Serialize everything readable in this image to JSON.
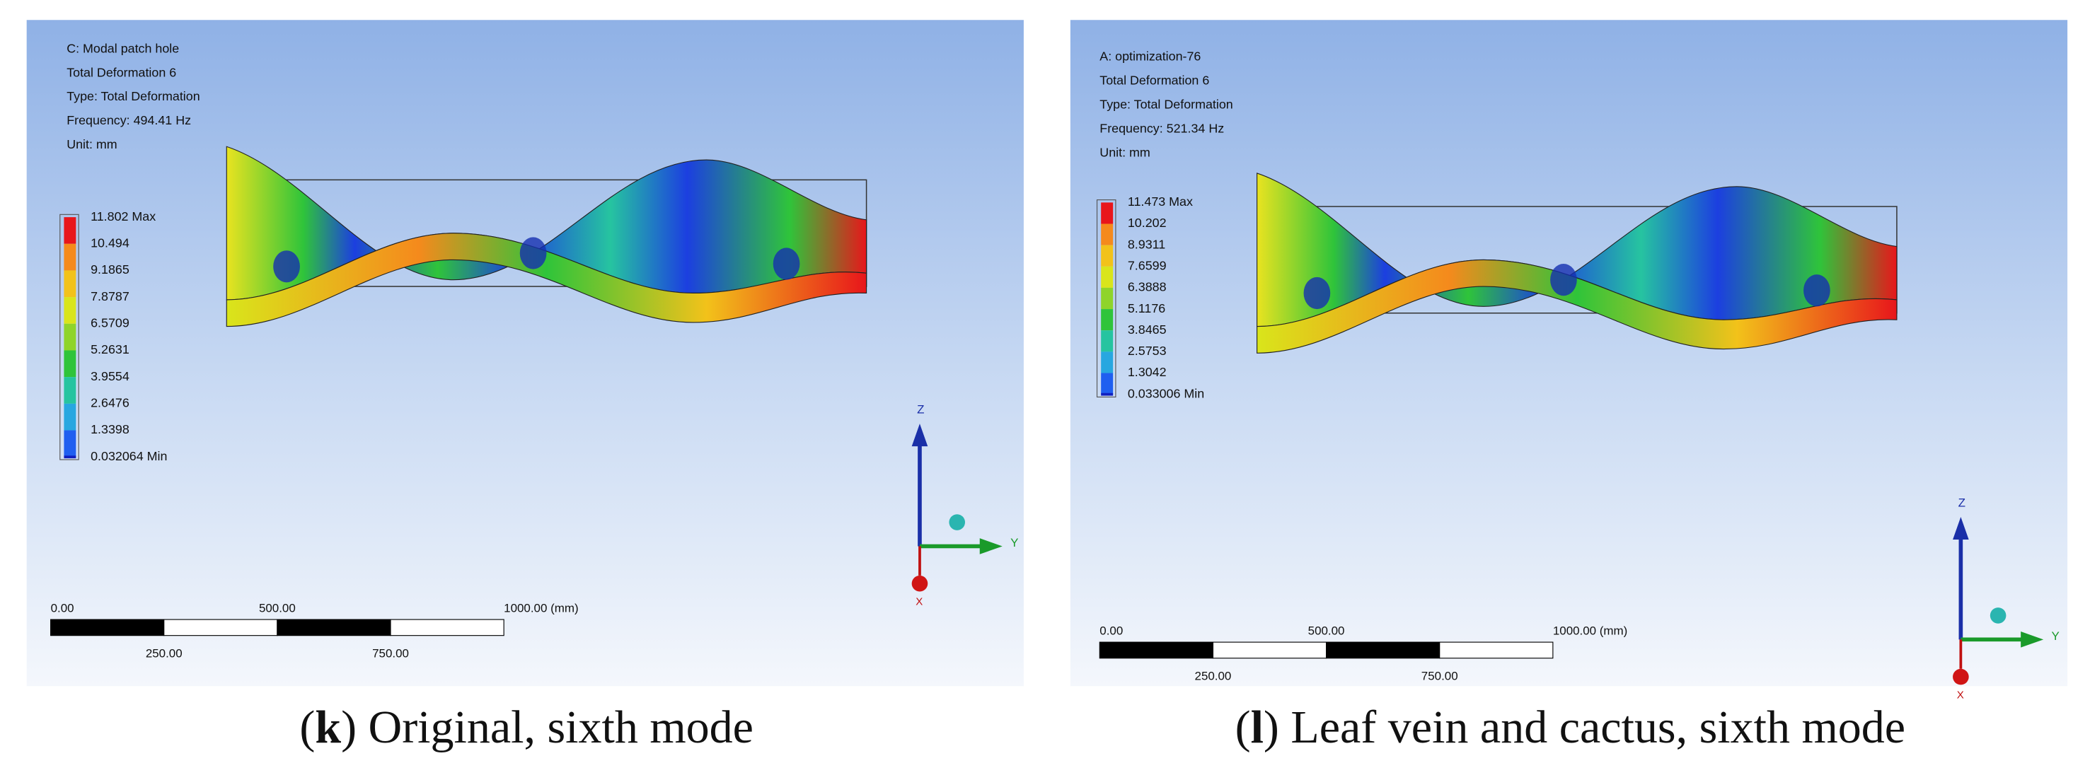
{
  "panels": [
    {
      "header": [
        "C: Modal patch hole",
        "Total Deformation 6",
        "Type: Total Deformation",
        "Frequency: 494.41 Hz",
        "Unit: mm"
      ],
      "legend": {
        "labels": [
          "11.802 Max",
          "10.494",
          "9.1865",
          "7.8787",
          "6.5709",
          "5.2631",
          "3.9554",
          "2.6476",
          "1.3398",
          "0.032064 Min"
        ],
        "colors": [
          "#e8161b",
          "#f58a1c",
          "#f2c21a",
          "#d9e51b",
          "#8fd42a",
          "#2fc43a",
          "#26c4a0",
          "#27a7e0",
          "#1f5ff0"
        ]
      },
      "scale_top": [
        "0.00",
        "500.00",
        "1000.00 (mm)"
      ],
      "scale_bottom": [
        "250.00",
        "750.00"
      ],
      "axes": [
        "Z",
        "Y",
        "X"
      ],
      "caption": [
        "(",
        "k",
        ") Original, sixth mode"
      ]
    },
    {
      "header": [
        "A: optimization-76",
        "Total Deformation 6",
        "Type: Total Deformation",
        "Frequency: 521.34 Hz",
        "Unit: mm"
      ],
      "legend": {
        "labels": [
          "11.473 Max",
          "10.202",
          "8.9311",
          "7.6599",
          "6.3888",
          "5.1176",
          "3.8465",
          "2.5753",
          "1.3042",
          "0.033006 Min"
        ],
        "colors": [
          "#e8161b",
          "#f58a1c",
          "#f2c21a",
          "#d9e51b",
          "#8fd42a",
          "#2fc43a",
          "#26c4a0",
          "#27a7e0",
          "#1f5ff0"
        ]
      },
      "scale_top": [
        "0.00",
        "500.00",
        "1000.00 (mm)"
      ],
      "scale_bottom": [
        "250.00",
        "750.00"
      ],
      "axes": [
        "Z",
        "Y",
        "X"
      ],
      "caption": [
        "(",
        "l",
        ") Leaf vein and cactus, sixth mode"
      ]
    }
  ]
}
